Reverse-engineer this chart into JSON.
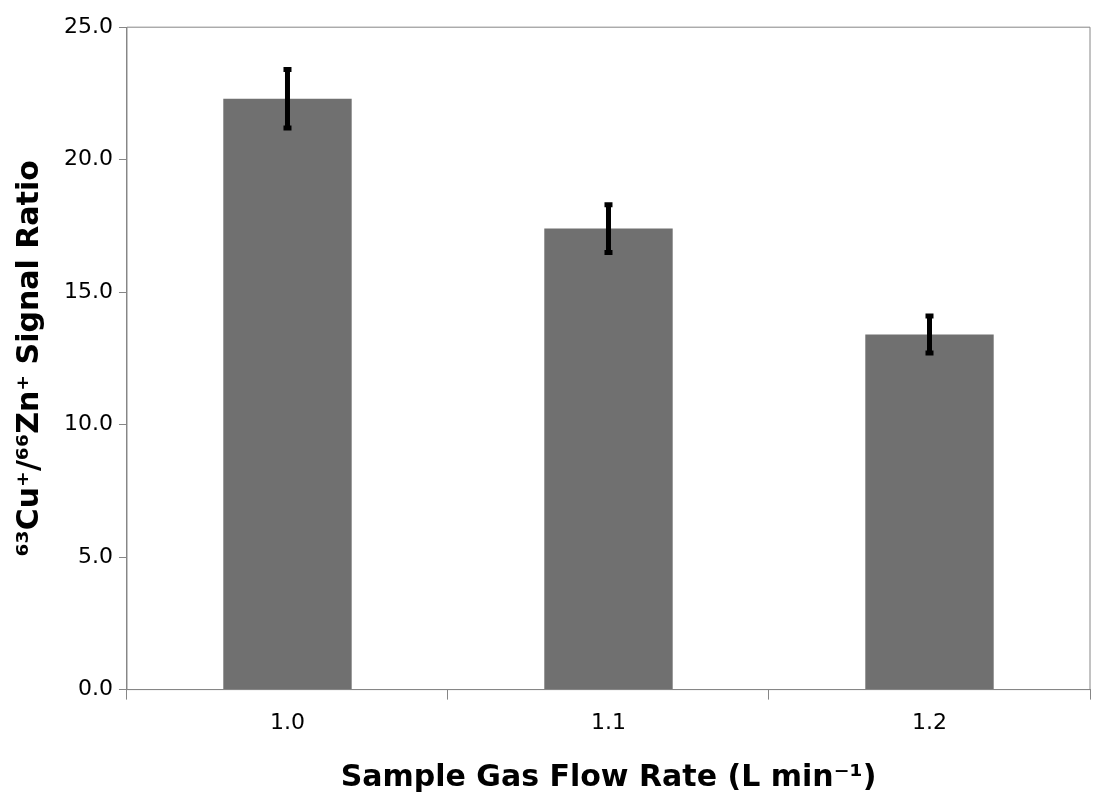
{
  "chart_data": {
    "type": "bar",
    "xlabel": "Sample Gas Flow Rate (L min⁻¹)",
    "ylabel": "⁶³Cu⁺/⁶⁶Zn⁺ Signal Ratio",
    "categories": [
      "1.0",
      "1.1",
      "1.2"
    ],
    "values": [
      22.3,
      17.4,
      13.4
    ],
    "errors": [
      1.1,
      0.9,
      0.7
    ],
    "color": "#707070",
    "ylim": [
      0,
      25
    ],
    "yticks": [
      {
        "value": 0,
        "label": "0.0"
      },
      {
        "value": 5,
        "label": "5.0"
      },
      {
        "value": 10,
        "label": "10.0"
      },
      {
        "value": 15,
        "label": "15.0"
      },
      {
        "value": 20,
        "label": "20.0"
      },
      {
        "value": 25,
        "label": "25.0"
      }
    ],
    "grid": false,
    "legend": false
  }
}
